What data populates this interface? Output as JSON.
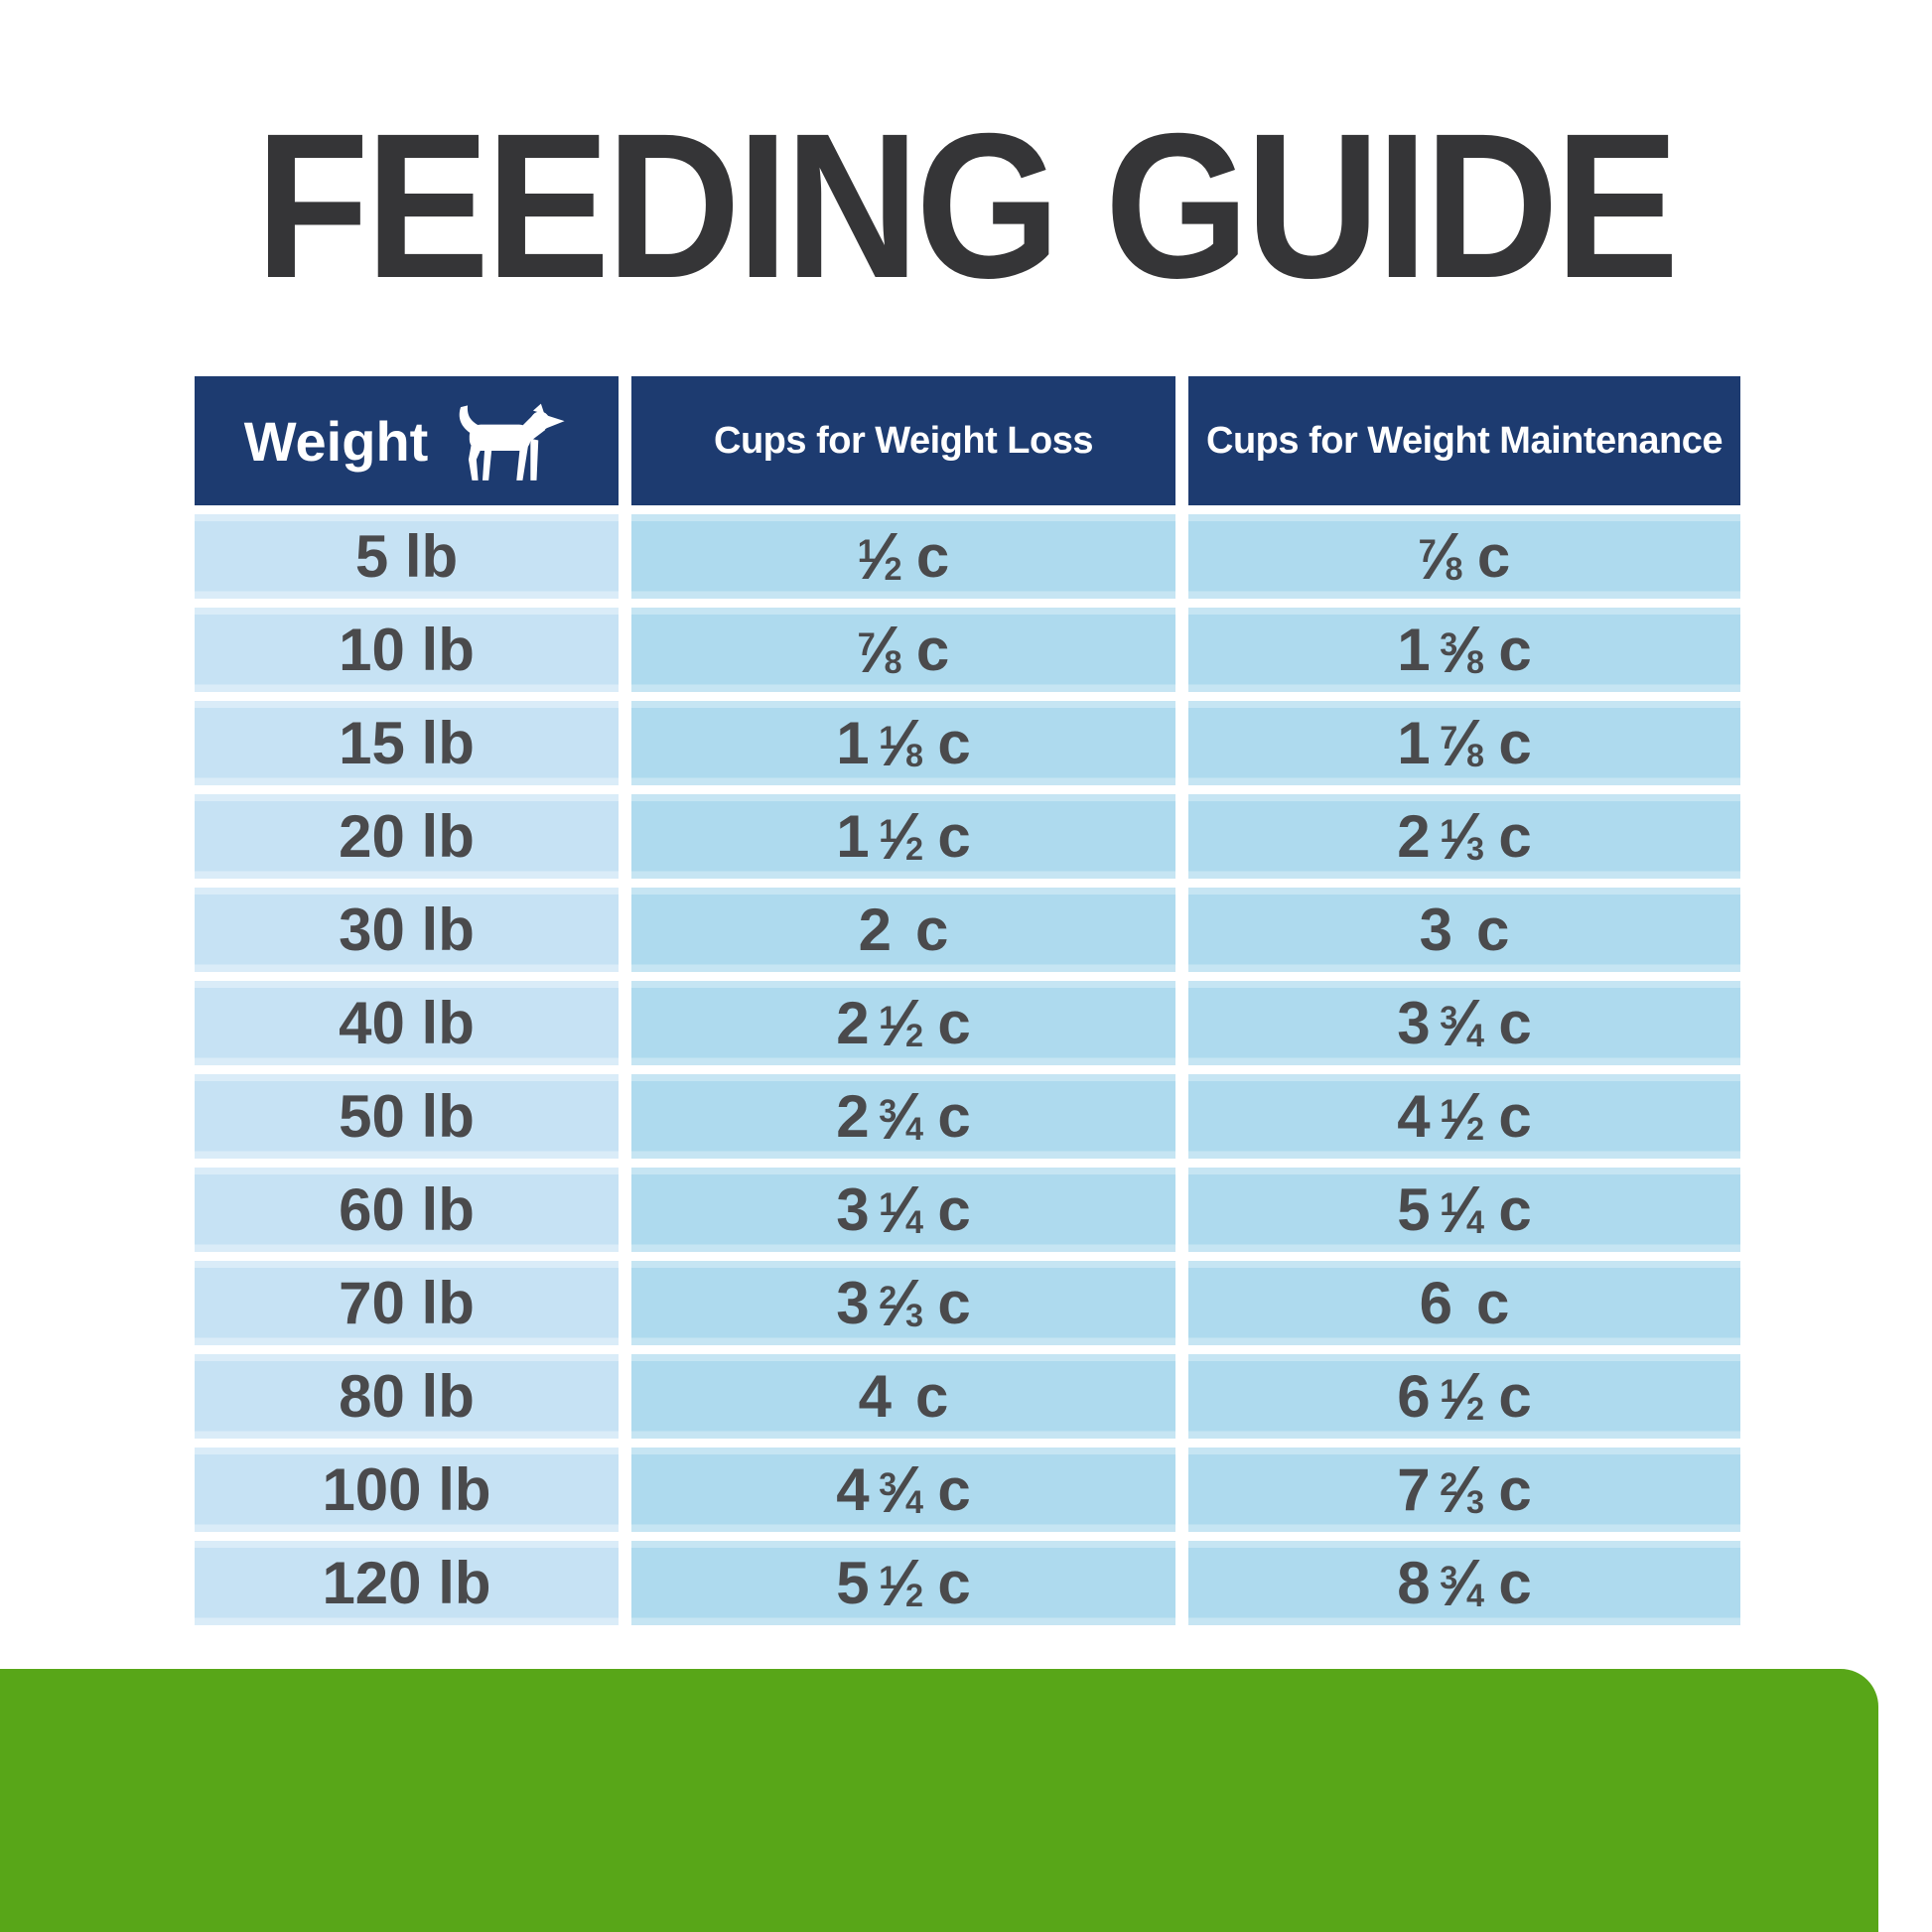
{
  "page": {
    "title": "FEEDING GUIDE",
    "title_color": "#353537",
    "background_color": "#ffffff",
    "accent_green": "#58a618",
    "header_navy": "#1d3b70",
    "weight_column_cell_color": "#c6e2f4",
    "cups_column_cell_color": "#aedaee",
    "cell_text_color": "#4a4a4c"
  },
  "table": {
    "unit": "c",
    "columns": [
      {
        "label": "Weight",
        "icon": "dog-icon"
      },
      {
        "label": "Cups for Weight Loss"
      },
      {
        "label": "Cups for Weight Maintenance"
      }
    ],
    "rows": [
      {
        "weight": "5 lb",
        "loss": {
          "whole": "",
          "num": "1",
          "den": "2"
        },
        "maintenance": {
          "whole": "",
          "num": "7",
          "den": "8"
        }
      },
      {
        "weight": "10 lb",
        "loss": {
          "whole": "",
          "num": "7",
          "den": "8"
        },
        "maintenance": {
          "whole": "1",
          "num": "3",
          "den": "8"
        }
      },
      {
        "weight": "15 lb",
        "loss": {
          "whole": "1",
          "num": "1",
          "den": "8"
        },
        "maintenance": {
          "whole": "1",
          "num": "7",
          "den": "8"
        }
      },
      {
        "weight": "20 lb",
        "loss": {
          "whole": "1",
          "num": "1",
          "den": "2"
        },
        "maintenance": {
          "whole": "2",
          "num": "1",
          "den": "3"
        }
      },
      {
        "weight": "30 lb",
        "loss": {
          "whole": "2"
        },
        "maintenance": {
          "whole": "3"
        }
      },
      {
        "weight": "40 lb",
        "loss": {
          "whole": "2",
          "num": "1",
          "den": "2"
        },
        "maintenance": {
          "whole": "3",
          "num": "3",
          "den": "4"
        }
      },
      {
        "weight": "50 lb",
        "loss": {
          "whole": "2",
          "num": "3",
          "den": "4"
        },
        "maintenance": {
          "whole": "4",
          "num": "1",
          "den": "2"
        }
      },
      {
        "weight": "60 lb",
        "loss": {
          "whole": "3",
          "num": "1",
          "den": "4"
        },
        "maintenance": {
          "whole": "5",
          "num": "1",
          "den": "4"
        }
      },
      {
        "weight": "70 lb",
        "loss": {
          "whole": "3",
          "num": "2",
          "den": "3"
        },
        "maintenance": {
          "whole": "6"
        }
      },
      {
        "weight": "80 lb",
        "loss": {
          "whole": "4"
        },
        "maintenance": {
          "whole": "6",
          "num": "1",
          "den": "2"
        }
      },
      {
        "weight": "100 lb",
        "loss": {
          "whole": "4",
          "num": "3",
          "den": "4"
        },
        "maintenance": {
          "whole": "7",
          "num": "2",
          "den": "3"
        }
      },
      {
        "weight": "120 lb",
        "loss": {
          "whole": "5",
          "num": "1",
          "den": "2"
        },
        "maintenance": {
          "whole": "8",
          "num": "3",
          "den": "4"
        }
      }
    ]
  }
}
